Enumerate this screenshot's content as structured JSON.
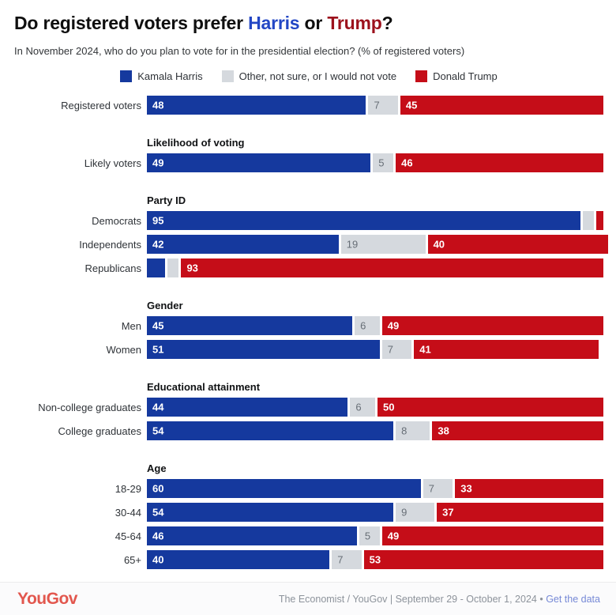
{
  "header": {
    "title_prefix": "Do registered voters prefer ",
    "title_harris": "Harris",
    "title_or": " or ",
    "title_trump": "Trump",
    "title_suffix": "?",
    "subtitle": "In November 2024, who do you plan to vote for in the presidential election? (% of registered voters)"
  },
  "colors": {
    "harris_bar": "#15399e",
    "other_bar": "#d5d9de",
    "trump_bar": "#c50d18",
    "harris_title_text": "#2347c5",
    "trump_title_text": "#9c111c",
    "logo_red": "#e2574e",
    "link_blue": "#7689d6"
  },
  "chart_data": {
    "type": "bar",
    "orientation": "horizontal",
    "stacked": true,
    "xlim": [
      0,
      100
    ],
    "series": [
      {
        "key": "harris",
        "name": "Kamala Harris",
        "color": "#15399e"
      },
      {
        "key": "other",
        "name": "Other, not sure, or I would not vote",
        "color": "#d5d9de"
      },
      {
        "key": "trump",
        "name": "Donald Trump",
        "color": "#c50d18"
      }
    ],
    "groups": [
      {
        "header": "",
        "rows": [
          {
            "label": "Registered voters",
            "values": [
              48,
              7,
              45
            ],
            "labels": [
              "48",
              "7",
              "45"
            ]
          }
        ]
      },
      {
        "header": "Likelihood of voting",
        "rows": [
          {
            "label": "Likely voters",
            "values": [
              49,
              5,
              46
            ],
            "labels": [
              "49",
              "5",
              "46"
            ]
          }
        ]
      },
      {
        "header": "Party ID",
        "rows": [
          {
            "label": "Democrats",
            "values": [
              95,
              3,
              2
            ],
            "labels": [
              "95",
              "",
              ""
            ]
          },
          {
            "label": "Independents",
            "values": [
              42,
              19,
              40
            ],
            "labels": [
              "42",
              "19",
              "40"
            ]
          },
          {
            "label": "Republicans",
            "values": [
              4,
              3,
              93
            ],
            "labels": [
              "",
              "",
              "93"
            ]
          }
        ]
      },
      {
        "header": "Gender",
        "rows": [
          {
            "label": "Men",
            "values": [
              45,
              6,
              49
            ],
            "labels": [
              "45",
              "6",
              "49"
            ]
          },
          {
            "label": "Women",
            "values": [
              51,
              7,
              41
            ],
            "labels": [
              "51",
              "7",
              "41"
            ]
          }
        ]
      },
      {
        "header": "Educational attainment",
        "rows": [
          {
            "label": "Non-college graduates",
            "values": [
              44,
              6,
              50
            ],
            "labels": [
              "44",
              "6",
              "50"
            ]
          },
          {
            "label": "College graduates",
            "values": [
              54,
              8,
              38
            ],
            "labels": [
              "54",
              "8",
              "38"
            ]
          }
        ]
      },
      {
        "header": "Age",
        "rows": [
          {
            "label": "18-29",
            "values": [
              60,
              7,
              33
            ],
            "labels": [
              "60",
              "7",
              "33"
            ]
          },
          {
            "label": "30-44",
            "values": [
              54,
              9,
              37
            ],
            "labels": [
              "54",
              "9",
              "37"
            ]
          },
          {
            "label": "45-64",
            "values": [
              46,
              5,
              49
            ],
            "labels": [
              "46",
              "5",
              "49"
            ]
          },
          {
            "label": "65+",
            "values": [
              40,
              7,
              53
            ],
            "labels": [
              "40",
              "7",
              "53"
            ]
          }
        ]
      }
    ]
  },
  "footer": {
    "logo": "YouGov",
    "source": "The Economist / YouGov | September 29 - October 1, 2024",
    "separator": " • ",
    "link": "Get the data"
  }
}
